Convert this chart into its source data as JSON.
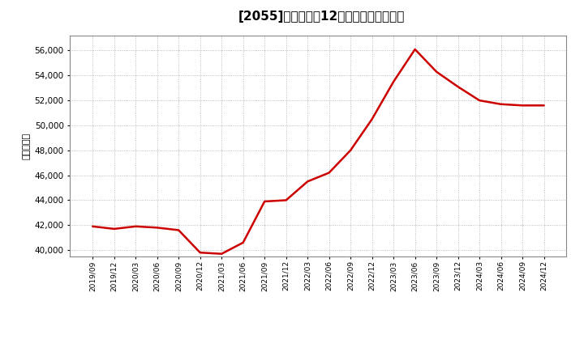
{
  "title": "[2055]　売上高の12か月移動合計の推移",
  "ylabel": "（百万円）",
  "line_color": "#cc0000",
  "background_color": "#ffffff",
  "plot_bg_color": "#ffffff",
  "grid_color": "#aaaaaa",
  "ylim": [
    39500,
    57200
  ],
  "yticks": [
    40000,
    42000,
    44000,
    46000,
    48000,
    50000,
    52000,
    54000,
    56000
  ],
  "dates": [
    "2019/09",
    "2019/12",
    "2020/03",
    "2020/06",
    "2020/09",
    "2020/12",
    "2021/03",
    "2021/06",
    "2021/09",
    "2021/12",
    "2022/03",
    "2022/06",
    "2022/09",
    "2022/12",
    "2023/03",
    "2023/06",
    "2023/09",
    "2023/12",
    "2024/03",
    "2024/06",
    "2024/09",
    "2024/12"
  ],
  "values": [
    41900,
    41700,
    41900,
    41800,
    41600,
    39800,
    39700,
    40600,
    43900,
    44000,
    45500,
    46200,
    48000,
    50500,
    53500,
    56100,
    54300,
    53100,
    52000,
    51700,
    51600,
    51600
  ],
  "title_fontsize": 11,
  "ylabel_fontsize": 8,
  "tick_fontsize": 7.5,
  "xtick_fontsize": 6.5,
  "linewidth": 1.8
}
